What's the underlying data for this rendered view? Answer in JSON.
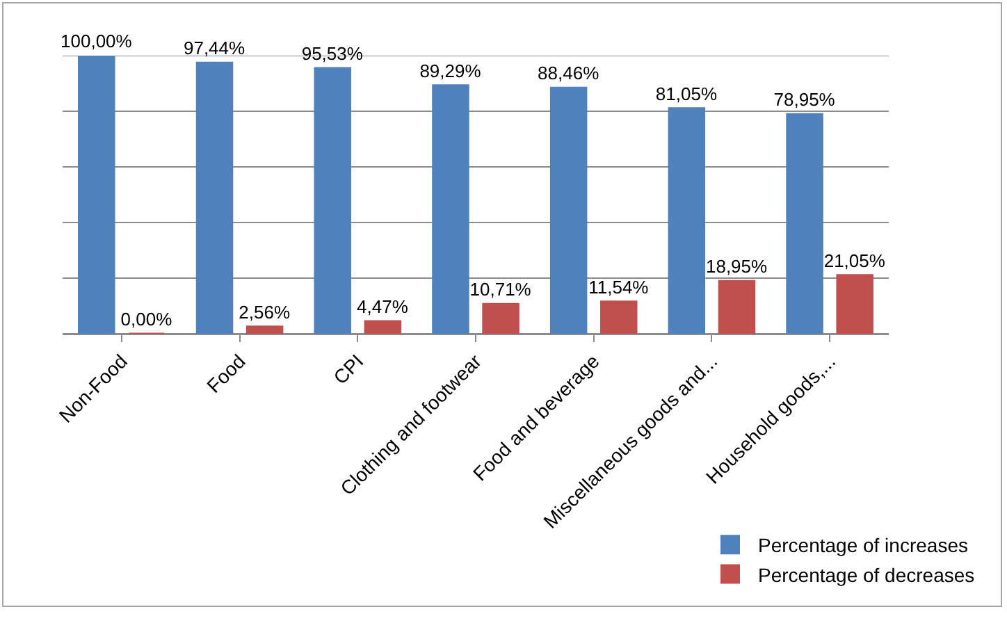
{
  "chart_data": {
    "type": "bar",
    "categories": [
      "Non-Food",
      "Food",
      "CPI",
      "Clothing and footwear",
      "Food and beverage",
      "Miscellaneous goods and...",
      "Household goods,..."
    ],
    "series": [
      {
        "name": "Percentage of increases",
        "color": "#4f81bd",
        "values": [
          100,
          97.44,
          95.53,
          89.29,
          88.46,
          81.05,
          78.95
        ],
        "value_labels": [
          "100,00%",
          "97,44%",
          "95,53%",
          "89,29%",
          "88,46%",
          "81,05%",
          "78,95%"
        ]
      },
      {
        "name": "Percentage of decreases",
        "color": "#c0504d",
        "values": [
          0,
          2.56,
          4.47,
          10.71,
          11.54,
          18.95,
          21.05
        ],
        "value_labels": [
          "0,00%",
          "2,56%",
          "4,47%",
          "10,71%",
          "11,54%",
          "18,95%",
          "21,05%"
        ]
      }
    ],
    "ylim": [
      0,
      100
    ],
    "yticks": [
      {
        "value": 0,
        "label": null
      },
      {
        "value": 20,
        "label": null
      },
      {
        "value": 40,
        "label": null
      },
      {
        "value": 60,
        "label": null
      },
      {
        "value": 80,
        "label": null
      },
      {
        "value": 100,
        "label": null
      }
    ],
    "grid": "y",
    "tick_labels": "x",
    "legend": "bottom right"
  }
}
